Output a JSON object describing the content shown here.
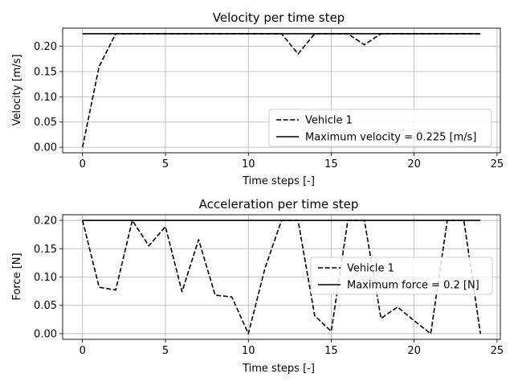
{
  "chart_data": [
    {
      "type": "line",
      "title": "Velocity per time step",
      "xlabel": "Time steps [-]",
      "ylabel": "Velocity [m/s]",
      "xlim": [
        -1.2,
        25.2
      ],
      "ylim": [
        -0.011,
        0.236
      ],
      "xticks": [
        0,
        5,
        10,
        15,
        20,
        25
      ],
      "yticks": [
        0.0,
        0.05,
        0.1,
        0.15,
        0.2
      ],
      "ytick_labels": [
        "0.00",
        "0.05",
        "0.10",
        "0.15",
        "0.20"
      ],
      "grid": true,
      "legend_position": "lower-right",
      "series": [
        {
          "name": "Vehicle 1",
          "style": "dashed",
          "color": "#000000",
          "x": [
            0,
            1,
            2,
            3,
            4,
            5,
            6,
            7,
            8,
            9,
            10,
            11,
            12,
            13,
            14,
            15,
            16,
            17,
            18,
            19,
            20,
            21,
            22,
            23,
            24
          ],
          "y": [
            0.0,
            0.16,
            0.225,
            0.225,
            0.225,
            0.225,
            0.225,
            0.225,
            0.225,
            0.225,
            0.225,
            0.225,
            0.225,
            0.185,
            0.225,
            0.225,
            0.225,
            0.203,
            0.225,
            0.225,
            0.225,
            0.225,
            0.225,
            0.225,
            0.225
          ]
        },
        {
          "name": "Maximum velocity = 0.225 [m/s]",
          "style": "solid",
          "color": "#000000",
          "x": [
            0,
            24
          ],
          "y": [
            0.225,
            0.225
          ]
        }
      ]
    },
    {
      "type": "line",
      "title": "Acceleration per time step",
      "xlabel": "Time steps [-]",
      "ylabel": "Force [N]",
      "xlim": [
        -1.2,
        25.2
      ],
      "ylim": [
        -0.01,
        0.21
      ],
      "xticks": [
        0,
        5,
        10,
        15,
        20,
        25
      ],
      "yticks": [
        0.0,
        0.05,
        0.1,
        0.15,
        0.2
      ],
      "ytick_labels": [
        "0.00",
        "0.05",
        "0.10",
        "0.15",
        "0.20"
      ],
      "grid": true,
      "legend_position": "center-right",
      "series": [
        {
          "name": "Vehicle 1",
          "style": "dashed",
          "color": "#000000",
          "x": [
            0,
            1,
            2,
            3,
            4,
            5,
            6,
            7,
            8,
            9,
            10,
            11,
            12,
            13,
            14,
            15,
            16,
            17,
            18,
            19,
            20,
            21,
            22,
            23,
            24
          ],
          "y": [
            0.2,
            0.082,
            0.077,
            0.2,
            0.155,
            0.189,
            0.074,
            0.166,
            0.068,
            0.065,
            0.0,
            0.115,
            0.2,
            0.2,
            0.032,
            0.004,
            0.2,
            0.2,
            0.027,
            0.047,
            0.023,
            0.0,
            0.2,
            0.2,
            0.0
          ]
        },
        {
          "name": "Maximum force = 0.2 [N]",
          "style": "solid",
          "color": "#000000",
          "x": [
            0,
            24
          ],
          "y": [
            0.2,
            0.2
          ]
        }
      ]
    }
  ]
}
